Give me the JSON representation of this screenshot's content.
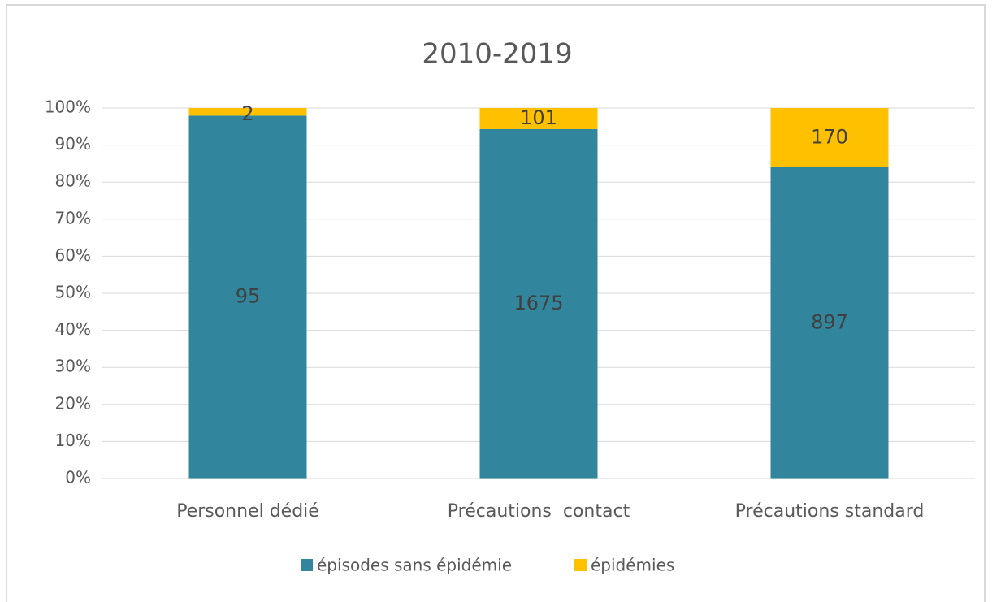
{
  "chart_data": {
    "type": "bar",
    "stacking": "percent",
    "title": "2010-2019",
    "categories": [
      "Personnel dédié",
      "Précautions  contact",
      "Précautions standard"
    ],
    "series": [
      {
        "name": "épisodes sans épidémie",
        "color": "#31859c",
        "values": [
          95,
          1675,
          897
        ]
      },
      {
        "name": "épidémies",
        "color": "#ffc000",
        "values": [
          2,
          101,
          170
        ]
      }
    ],
    "ylim": [
      0,
      100
    ],
    "yticks": [
      {
        "value": 0,
        "label": "0%"
      },
      {
        "value": 10,
        "label": "10%"
      },
      {
        "value": 20,
        "label": "20%"
      },
      {
        "value": 30,
        "label": "30%"
      },
      {
        "value": 40,
        "label": "40%"
      },
      {
        "value": 50,
        "label": "50%"
      },
      {
        "value": 60,
        "label": "60%"
      },
      {
        "value": 70,
        "label": "70%"
      },
      {
        "value": 80,
        "label": "80%"
      },
      {
        "value": 90,
        "label": "90%"
      },
      {
        "value": 100,
        "label": "100%"
      }
    ],
    "grid": true,
    "legend": "bottom"
  }
}
